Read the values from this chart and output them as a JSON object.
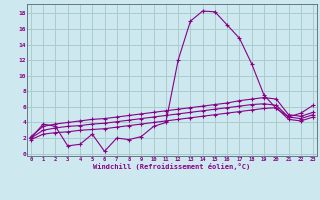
{
  "title": "",
  "xlabel": "Windchill (Refroidissement éolien,°C)",
  "background_color": "#cde8ee",
  "plot_bg_color": "#cde8ee",
  "grid_color": "#aacccc",
  "line_color": "#880088",
  "x_ticks": [
    0,
    1,
    2,
    3,
    4,
    5,
    6,
    7,
    8,
    9,
    10,
    11,
    12,
    13,
    14,
    15,
    16,
    17,
    18,
    19,
    20,
    21,
    22,
    23
  ],
  "y_ticks": [
    0,
    2,
    4,
    6,
    8,
    10,
    12,
    14,
    16,
    18
  ],
  "xlim": [
    -0.3,
    23.3
  ],
  "ylim": [
    -0.3,
    19.2
  ],
  "series": [
    [
      2.0,
      3.8,
      3.5,
      1.0,
      1.2,
      2.5,
      0.3,
      2.0,
      1.8,
      2.2,
      3.5,
      4.0,
      12.0,
      17.0,
      18.3,
      18.2,
      16.5,
      14.8,
      11.5,
      7.5,
      5.8,
      4.7,
      5.2,
      6.2
    ],
    [
      2.2,
      3.5,
      3.8,
      4.0,
      4.2,
      4.4,
      4.5,
      4.7,
      4.9,
      5.1,
      5.3,
      5.5,
      5.7,
      5.9,
      6.1,
      6.3,
      6.5,
      6.8,
      7.0,
      7.2,
      7.0,
      5.0,
      4.8,
      5.3
    ],
    [
      2.0,
      3.0,
      3.3,
      3.5,
      3.6,
      3.8,
      3.9,
      4.1,
      4.3,
      4.5,
      4.7,
      4.9,
      5.1,
      5.3,
      5.5,
      5.7,
      5.9,
      6.1,
      6.3,
      6.4,
      6.2,
      4.7,
      4.5,
      5.0
    ],
    [
      1.8,
      2.5,
      2.7,
      2.8,
      3.0,
      3.1,
      3.2,
      3.4,
      3.6,
      3.8,
      4.0,
      4.2,
      4.4,
      4.6,
      4.8,
      5.0,
      5.2,
      5.4,
      5.6,
      5.8,
      5.9,
      4.4,
      4.2,
      4.7
    ]
  ]
}
